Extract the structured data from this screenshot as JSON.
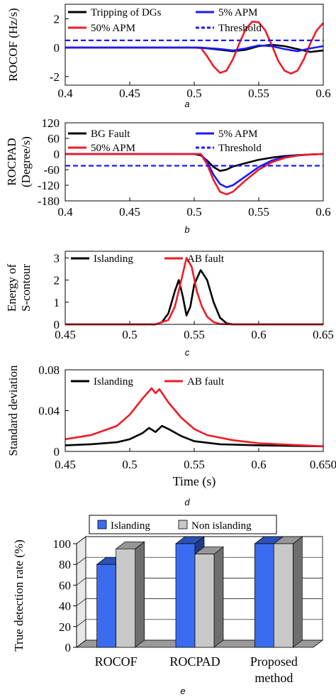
{
  "chart_data": [
    {
      "id": "a",
      "type": "line",
      "caption": "a",
      "ylabel": "ROCOF (Hz/s)",
      "xlabel": "",
      "xlim": [
        0.4,
        0.6
      ],
      "ylim": [
        -2.6,
        3
      ],
      "xticks": [
        "0.4",
        "0.45",
        "0.5",
        "0.55",
        "0.6"
      ],
      "yticks": [
        "-2",
        "0",
        "2"
      ],
      "series": [
        {
          "name": "Tripping of DGs",
          "color": "#000000",
          "dash": false,
          "x": [
            0.4,
            0.5,
            0.51,
            0.52,
            0.53,
            0.54,
            0.55,
            0.56,
            0.57,
            0.58,
            0.59,
            0.6
          ],
          "y": [
            0,
            0,
            -0.05,
            -0.15,
            -0.25,
            -0.15,
            0.1,
            0.2,
            0.1,
            -0.1,
            -0.3,
            -0.2
          ]
        },
        {
          "name": "50% APM",
          "color": "#ee1c25",
          "dash": false,
          "x": [
            0.4,
            0.505,
            0.51,
            0.515,
            0.52,
            0.525,
            0.53,
            0.535,
            0.54,
            0.545,
            0.55,
            0.555,
            0.56,
            0.565,
            0.57,
            0.575,
            0.58,
            0.585,
            0.59,
            0.595,
            0.6
          ],
          "y": [
            0,
            0,
            -0.6,
            -1.3,
            -1.75,
            -1.6,
            -0.8,
            0.3,
            1.3,
            1.8,
            1.75,
            1.2,
            0.2,
            -0.9,
            -1.6,
            -1.8,
            -1.6,
            -0.8,
            0.3,
            1.2,
            1.7
          ]
        },
        {
          "name": "5% APM",
          "color": "#1a1aff",
          "dash": false,
          "x": [
            0.4,
            0.505,
            0.52,
            0.53,
            0.54,
            0.55,
            0.56,
            0.57,
            0.58,
            0.59,
            0.6
          ],
          "y": [
            0,
            0,
            -0.1,
            -0.2,
            -0.05,
            0.15,
            0.1,
            -0.1,
            -0.25,
            -0.05,
            0.1
          ]
        },
        {
          "name": "Threshold",
          "color": "#1a1aff",
          "dash": true,
          "x": [
            0.4,
            0.6
          ],
          "y": [
            0.5,
            0.5
          ]
        }
      ],
      "legend": [
        "Tripping of DGs",
        "5% APM",
        "50% APM",
        "Threshold"
      ]
    },
    {
      "id": "b",
      "type": "line",
      "caption": "b",
      "ylabel": "ROCPAD (Degree/s)",
      "ylabel_lines": [
        "ROCPAD",
        "(Degree/s)"
      ],
      "xlabel": "",
      "xlim": [
        0.4,
        0.6
      ],
      "ylim": [
        -180,
        120
      ],
      "xticks": [
        "0.4",
        "0.45",
        "0.5",
        "0.55",
        "0.6"
      ],
      "yticks": [
        "120",
        "60",
        "0",
        "-60",
        "-120",
        "-180"
      ],
      "series": [
        {
          "name": "BG Fault",
          "color": "#000000",
          "dash": false,
          "x": [
            0.4,
            0.5,
            0.505,
            0.51,
            0.515,
            0.52,
            0.525,
            0.53,
            0.54,
            0.55,
            0.56,
            0.57,
            0.58,
            0.59,
            0.6
          ],
          "y": [
            0,
            0,
            -5,
            -25,
            -50,
            -65,
            -60,
            -48,
            -35,
            -22,
            -14,
            -8,
            -4,
            -2,
            0
          ]
        },
        {
          "name": "5% APM",
          "color": "#1a1aff",
          "dash": false,
          "x": [
            0.4,
            0.505,
            0.51,
            0.515,
            0.52,
            0.525,
            0.53,
            0.54,
            0.55,
            0.56,
            0.57,
            0.58,
            0.59,
            0.6
          ],
          "y": [
            0,
            0,
            -30,
            -80,
            -115,
            -128,
            -120,
            -85,
            -50,
            -25,
            -12,
            -5,
            -2,
            0
          ]
        },
        {
          "name": "50% APM",
          "color": "#ee1c25",
          "dash": false,
          "x": [
            0.4,
            0.505,
            0.51,
            0.515,
            0.52,
            0.525,
            0.53,
            0.54,
            0.55,
            0.56,
            0.57,
            0.58,
            0.59,
            0.6
          ],
          "y": [
            0,
            0,
            -40,
            -100,
            -145,
            -155,
            -145,
            -100,
            -60,
            -32,
            -15,
            -6,
            -2,
            0
          ]
        },
        {
          "name": "Threshold",
          "color": "#1a1aff",
          "dash": true,
          "x": [
            0.4,
            0.6
          ],
          "y": [
            -45,
            -45
          ]
        }
      ],
      "legend": [
        "BG Fault",
        "5% APM",
        "50% APM",
        "Threshold"
      ]
    },
    {
      "id": "c",
      "type": "line",
      "caption": "c",
      "ylabel": "Energy of S-contour",
      "ylabel_lines": [
        "Energy of",
        "S-contour"
      ],
      "xlabel": "",
      "xlim": [
        0.45,
        0.65
      ],
      "ylim": [
        0,
        3.3
      ],
      "xticks": [
        "0.45",
        "0.5",
        "0.55",
        "0.6",
        "0.65"
      ],
      "yticks": [
        "0",
        "1",
        "2",
        "3"
      ],
      "series": [
        {
          "name": "Islanding",
          "color": "#000000",
          "dash": false,
          "x": [
            0.45,
            0.52,
            0.525,
            0.53,
            0.535,
            0.538,
            0.541,
            0.544,
            0.547,
            0.55,
            0.555,
            0.56,
            0.565,
            0.57,
            0.575,
            0.58,
            0.65
          ],
          "y": [
            0,
            0,
            0.1,
            0.5,
            1.5,
            2.0,
            1.3,
            0.4,
            0.8,
            1.8,
            2.45,
            2.0,
            1.0,
            0.3,
            0.05,
            0,
            0
          ]
        },
        {
          "name": "AB fault",
          "color": "#ee1c25",
          "dash": false,
          "x": [
            0.45,
            0.52,
            0.53,
            0.535,
            0.54,
            0.544,
            0.548,
            0.552,
            0.556,
            0.56,
            0.565,
            0.57,
            0.58,
            0.65
          ],
          "y": [
            0,
            0,
            0.2,
            0.8,
            2.0,
            3.0,
            2.6,
            1.5,
            0.8,
            0.35,
            0.1,
            0.02,
            0,
            0
          ]
        }
      ],
      "legend": [
        "Islanding",
        "AB fault"
      ]
    },
    {
      "id": "d",
      "type": "line",
      "caption": "d",
      "ylabel": "Standard deviation",
      "xlabel": "Time (s)",
      "xlim": [
        0.45,
        0.65
      ],
      "ylim": [
        0,
        0.08
      ],
      "xticks": [
        "0.45",
        "0.5",
        "0.55",
        "0.6",
        "0.650"
      ],
      "yticks": [
        "0",
        "0.04",
        "0.08"
      ],
      "series": [
        {
          "name": "Islanding",
          "color": "#000000",
          "dash": false,
          "x": [
            0.45,
            0.47,
            0.49,
            0.5,
            0.51,
            0.515,
            0.52,
            0.525,
            0.53,
            0.54,
            0.55,
            0.57,
            0.6,
            0.65
          ],
          "y": [
            0.006,
            0.007,
            0.009,
            0.012,
            0.018,
            0.023,
            0.019,
            0.025,
            0.022,
            0.015,
            0.01,
            0.007,
            0.006,
            0.005
          ]
        },
        {
          "name": "AB fault",
          "color": "#ee1c25",
          "dash": false,
          "x": [
            0.45,
            0.47,
            0.49,
            0.5,
            0.51,
            0.517,
            0.52,
            0.523,
            0.53,
            0.54,
            0.55,
            0.56,
            0.58,
            0.6,
            0.65
          ],
          "y": [
            0.012,
            0.016,
            0.025,
            0.036,
            0.052,
            0.062,
            0.057,
            0.061,
            0.048,
            0.033,
            0.022,
            0.016,
            0.011,
            0.008,
            0.005
          ]
        }
      ],
      "legend": [
        "Islanding",
        "AB fault"
      ]
    },
    {
      "id": "e",
      "type": "bar",
      "caption": "e",
      "ylabel": "True detection  rate (%)",
      "xlabel": "",
      "ylim": [
        0,
        100
      ],
      "yticks": [
        "0",
        "20",
        "40",
        "60",
        "80",
        "100"
      ],
      "categories": [
        "ROCOF",
        "ROCPAD",
        "Proposed method"
      ],
      "category_lines": [
        [
          "ROCOF"
        ],
        [
          "ROCPAD"
        ],
        [
          "Proposed",
          "method"
        ]
      ],
      "series": [
        {
          "name": "Islanding",
          "color": "#3b6cf0",
          "values": [
            80,
            100,
            100
          ]
        },
        {
          "name": "Non islanding",
          "color": "#c8c8c8",
          "values": [
            95,
            90,
            100
          ]
        }
      ],
      "legend": [
        "Islanding",
        "Non islanding"
      ]
    }
  ]
}
